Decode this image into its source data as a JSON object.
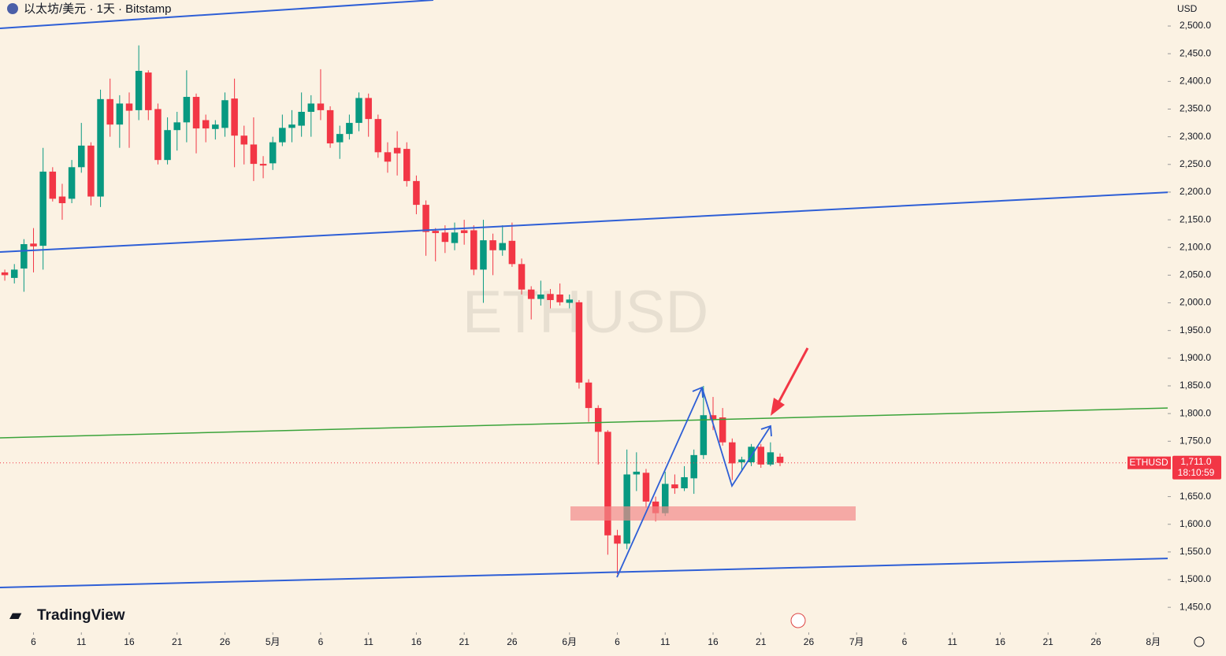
{
  "chart_data": {
    "type": "candlestick",
    "header": "以太坊/美元 · 1天 · Bitstamp",
    "currency": "USD",
    "watermark": "ETHUSD",
    "logo": "TradingView",
    "symbol_tag": "ETHUSD",
    "last_price": {
      "value": 1711,
      "label": "1,711.0"
    },
    "countdown": "18:10:59",
    "up_color": "#089981",
    "down_color": "#f23645",
    "x": [
      3,
      4,
      5,
      6,
      7,
      8,
      9,
      10,
      11,
      12,
      13,
      14,
      15,
      16,
      17,
      18,
      19,
      20,
      21,
      22,
      23,
      24,
      25,
      26,
      27,
      28,
      29,
      30,
      31,
      32,
      33,
      34,
      35,
      36,
      37,
      38,
      39,
      40,
      41,
      42,
      43,
      44,
      45,
      46,
      47,
      48,
      49,
      50,
      51,
      52,
      53,
      54,
      55,
      56,
      57,
      58,
      59,
      60,
      61,
      62,
      63,
      64,
      65,
      66,
      67,
      68,
      69,
      70,
      71,
      72,
      73,
      74,
      75,
      76,
      77,
      78,
      79,
      80,
      81,
      82,
      83,
      84
    ],
    "open": [
      2055,
      2045,
      2062,
      2107,
      2103,
      2237,
      2192,
      2188,
      2245,
      2284,
      2192,
      2368,
      2322,
      2360,
      2348,
      2416,
      2350,
      2258,
      2312,
      2326,
      2372,
      2330,
      2314,
      2316,
      2369,
      2302,
      2286,
      2251,
      2252,
      2290,
      2316,
      2320,
      2345,
      2360,
      2348,
      2290,
      2305,
      2325,
      2370,
      2332,
      2272,
      2280,
      2278,
      2220,
      2177,
      2130,
      2127,
      2108,
      2131,
      2131,
      2060,
      2113,
      2095,
      2112,
      2070,
      2024,
      2007,
      2016,
      2015,
      2000,
      2001,
      1856,
      1810,
      1767,
      1580,
      1565,
      1690,
      1693,
      1641,
      1620,
      1672,
      1665,
      1683,
      1725,
      1797,
      1793,
      1748,
      1712,
      1712,
      1740,
      1708,
      1722
    ],
    "high": [
      2060,
      2070,
      2115,
      2135,
      2280,
      2245,
      2215,
      2258,
      2325,
      2290,
      2385,
      2405,
      2375,
      2380,
      2465,
      2420,
      2360,
      2335,
      2345,
      2420,
      2378,
      2340,
      2330,
      2380,
      2405,
      2320,
      2335,
      2265,
      2300,
      2340,
      2348,
      2380,
      2375,
      2422,
      2355,
      2320,
      2340,
      2380,
      2378,
      2340,
      2290,
      2310,
      2290,
      2230,
      2185,
      2135,
      2140,
      2145,
      2150,
      2140,
      2150,
      2125,
      2140,
      2145,
      2080,
      2030,
      2040,
      2025,
      2035,
      2015,
      2005,
      1862,
      1815,
      1770,
      1590,
      1735,
      1730,
      1700,
      1650,
      1695,
      1690,
      1705,
      1735,
      1850,
      1830,
      1810,
      1755,
      1722,
      1745,
      1745,
      1748,
      1728
    ],
    "low": [
      2040,
      2035,
      2020,
      2055,
      2060,
      2183,
      2150,
      2180,
      2235,
      2176,
      2173,
      2300,
      2280,
      2280,
      2330,
      2330,
      2250,
      2250,
      2275,
      2290,
      2270,
      2290,
      2295,
      2300,
      2245,
      2250,
      2220,
      2225,
      2240,
      2283,
      2290,
      2300,
      2300,
      2330,
      2280,
      2260,
      2295,
      2310,
      2300,
      2262,
      2235,
      2230,
      2210,
      2160,
      2085,
      2075,
      2090,
      2095,
      2105,
      2050,
      2000,
      2050,
      2085,
      2065,
      2015,
      1970,
      1995,
      1990,
      1995,
      1990,
      1845,
      1785,
      1708,
      1545,
      1510,
      1555,
      1660,
      1630,
      1605,
      1615,
      1655,
      1660,
      1655,
      1718,
      1770,
      1742,
      1680,
      1695,
      1705,
      1702,
      1705,
      1705
    ],
    "close": [
      2050,
      2060,
      2106,
      2102,
      2237,
      2188,
      2180,
      2245,
      2284,
      2192,
      2368,
      2322,
      2360,
      2347,
      2419,
      2348,
      2258,
      2312,
      2326,
      2372,
      2315,
      2315,
      2322,
      2366,
      2302,
      2286,
      2251,
      2248,
      2290,
      2316,
      2322,
      2345,
      2360,
      2348,
      2288,
      2305,
      2325,
      2370,
      2332,
      2272,
      2255,
      2270,
      2220,
      2177,
      2128,
      2126,
      2110,
      2127,
      2126,
      2060,
      2113,
      2095,
      2108,
      2070,
      2024,
      2007,
      2015,
      2005,
      2001,
      2006,
      1856,
      1810,
      1767,
      1580,
      1565,
      1690,
      1695,
      1641,
      1620,
      1673,
      1665,
      1685,
      1725,
      1797,
      1790,
      1748,
      1710,
      1717,
      1740,
      1708,
      1730,
      1711
    ],
    "xlim": [
      2.5,
      124.5
    ],
    "ylim": [
      1409,
      2547
    ],
    "yticks": [
      {
        "value": 1450,
        "label": "1,450.0"
      },
      {
        "value": 1500,
        "label": "1,500.0"
      },
      {
        "value": 1550,
        "label": "1,550.0"
      },
      {
        "value": 1600,
        "label": "1,600.0"
      },
      {
        "value": 1650,
        "label": "1,650.0"
      },
      {
        "value": 1700,
        "label": "1,700.0"
      },
      {
        "value": 1750,
        "label": "1,750.0"
      },
      {
        "value": 1800,
        "label": "1,800.0"
      },
      {
        "value": 1850,
        "label": "1,850.0"
      },
      {
        "value": 1900,
        "label": "1,900.0"
      },
      {
        "value": 1950,
        "label": "1,950.0"
      },
      {
        "value": 2000,
        "label": "2,000.0"
      },
      {
        "value": 2050,
        "label": "2,050.0"
      },
      {
        "value": 2100,
        "label": "2,100.0"
      },
      {
        "value": 2150,
        "label": "2,150.0"
      },
      {
        "value": 2200,
        "label": "2,200.0"
      },
      {
        "value": 2250,
        "label": "2,250.0"
      },
      {
        "value": 2300,
        "label": "2,300.0"
      },
      {
        "value": 2350,
        "label": "2,350.0"
      },
      {
        "value": 2400,
        "label": "2,400.0"
      },
      {
        "value": 2450,
        "label": "2,450.0"
      },
      {
        "value": 2500,
        "label": "2,500.0"
      }
    ],
    "xticks": [
      6,
      11,
      16,
      21,
      26,
      {
        "value": 31,
        "label": "5月"
      },
      {
        "value": 36,
        "label": "6"
      },
      {
        "value": 41,
        "label": "11"
      },
      {
        "value": 46,
        "label": "16"
      },
      {
        "value": 51,
        "label": "21"
      },
      {
        "value": 56,
        "label": "26"
      },
      {
        "value": 62,
        "label": "6月"
      },
      {
        "value": 67,
        "label": "6"
      },
      {
        "value": 72,
        "label": "11"
      },
      {
        "value": 77,
        "label": "16"
      },
      {
        "value": 82,
        "label": "21"
      },
      {
        "value": 87,
        "label": "26"
      },
      {
        "value": 92,
        "label": "7月"
      },
      {
        "value": 97,
        "label": "6"
      },
      {
        "value": 102,
        "label": "11"
      },
      {
        "value": 107,
        "label": "16"
      },
      {
        "value": 112,
        "label": "21"
      },
      {
        "value": 117,
        "label": "26"
      },
      {
        "value": 123,
        "label": "8月"
      }
    ]
  }
}
